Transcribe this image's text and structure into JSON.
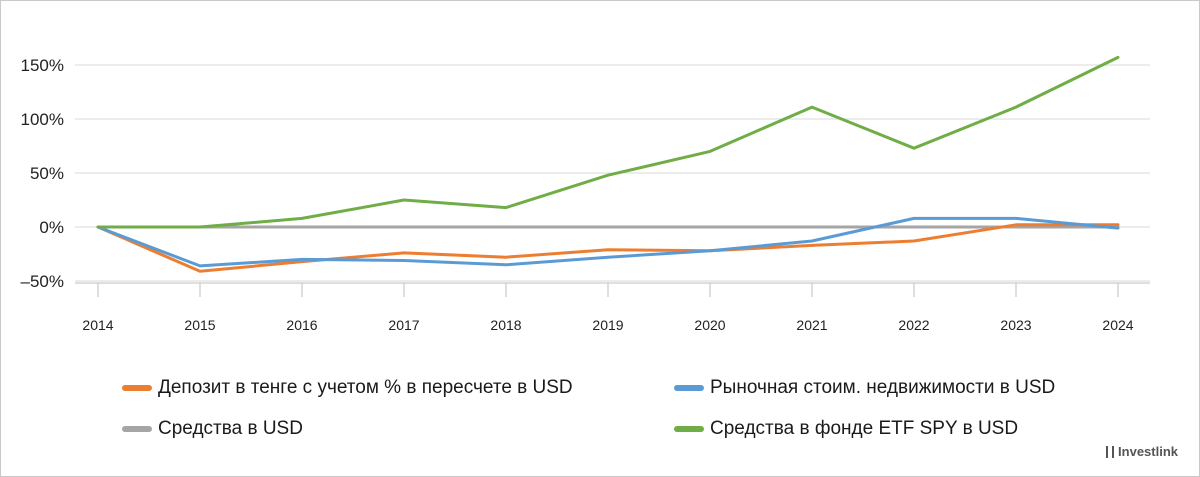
{
  "chart_data": {
    "type": "line",
    "title": "",
    "xlabel": "",
    "ylabel": "",
    "x": [
      "2014",
      "2015",
      "2016",
      "2017",
      "2018",
      "2019",
      "2020",
      "2021",
      "2022",
      "2023",
      "2024"
    ],
    "y_ticks": [
      "150%",
      "100%",
      "50%",
      "0%",
      "–50%"
    ],
    "y_tick_values": [
      150,
      100,
      50,
      0,
      -50
    ],
    "ylim": [
      -60,
      170
    ],
    "grid": true,
    "legend_position": "bottom",
    "series": [
      {
        "name": "Депозит в тенге с учетом % в пересчете в USD",
        "color": "#ED7D31",
        "values": [
          0,
          -41,
          -32,
          -24,
          -28,
          -21,
          -22,
          -17,
          -13,
          2,
          2
        ]
      },
      {
        "name": "Рыночная стоим. недвижимости в USD",
        "color": "#5B9BD5",
        "values": [
          0,
          -36,
          -30,
          -31,
          -35,
          -28,
          -22,
          -13,
          8,
          8,
          -1
        ]
      },
      {
        "name": "Средства в USD",
        "color": "#A5A5A5",
        "values": [
          0,
          0,
          0,
          0,
          0,
          0,
          0,
          0,
          0,
          0,
          0
        ]
      },
      {
        "name": "Средства в фонде ETF SPY в USD",
        "color": "#70AD47",
        "values": [
          0,
          0,
          8,
          25,
          18,
          48,
          70,
          111,
          73,
          111,
          157
        ]
      }
    ]
  },
  "brand": "Investlink"
}
